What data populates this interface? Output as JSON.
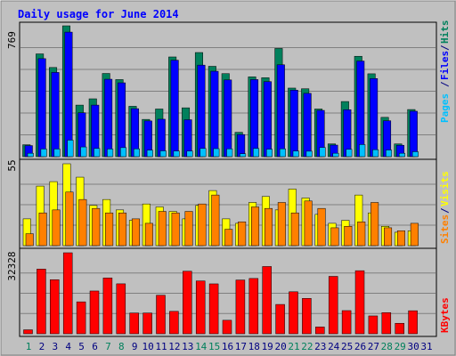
{
  "title": "Daily usage for June 2014",
  "colors": {
    "background": "#c0c0c0",
    "title": "#0000ff",
    "hits": "#00805c",
    "files": "#0000ff",
    "pages": "#00c0ff",
    "visits": "#ffff00",
    "sites": "#ff8000",
    "kbytes": "#ff0000",
    "weekend_day": "#00805c",
    "weekday": "#000080",
    "grid": "#808080"
  },
  "chart_data": [
    {
      "type": "bar",
      "name": "hits-files-pages",
      "ymax_label": "769",
      "ylim": [
        0,
        769
      ],
      "legend": [
        "Pages",
        "Files",
        "Hits"
      ],
      "series": [
        {
          "name": "Hits",
          "values": [
            70,
            604,
            524,
            769,
            303,
            340,
            489,
            453,
            296,
            219,
            280,
            586,
            287,
            612,
            531,
            488,
            143,
            469,
            464,
            636,
            403,
            399,
            280,
            75,
            324,
            590,
            487,
            231,
            75,
            277
          ]
        },
        {
          "name": "Files",
          "values": [
            65,
            576,
            495,
            732,
            258,
            303,
            455,
            434,
            282,
            210,
            220,
            567,
            217,
            538,
            502,
            451,
            130,
            453,
            441,
            540,
            391,
            372,
            272,
            68,
            276,
            562,
            459,
            211,
            67,
            267
          ]
        },
        {
          "name": "Pages",
          "values": [
            20,
            45,
            45,
            97,
            57,
            48,
            45,
            53,
            46,
            38,
            34,
            33,
            33,
            48,
            47,
            46,
            17,
            48,
            44,
            46,
            33,
            32,
            54,
            20,
            43,
            71,
            41,
            39,
            20,
            29
          ]
        }
      ]
    },
    {
      "type": "bar",
      "name": "visits-sites",
      "ymax_label": "55",
      "ylim": [
        0,
        55
      ],
      "legend": [
        "Sites",
        "Visits"
      ],
      "series": [
        {
          "name": "Visits",
          "values": [
            18,
            40,
            43,
            55,
            46,
            27,
            31,
            24,
            17,
            28,
            26,
            23,
            18,
            27,
            37,
            18,
            15,
            29,
            33,
            24,
            38,
            32,
            21,
            15,
            17,
            34,
            22,
            13,
            9,
            10
          ]
        },
        {
          "name": "Sites",
          "values": [
            8,
            22,
            24,
            36,
            31,
            25,
            22,
            22,
            18,
            15,
            23,
            22,
            23,
            28,
            34,
            11,
            16,
            26,
            25,
            29,
            22,
            30,
            25,
            12,
            13,
            16,
            29,
            12,
            10,
            15
          ]
        }
      ]
    },
    {
      "type": "bar",
      "name": "kbytes",
      "ymax_label": "32328",
      "ylim": [
        0,
        32328
      ],
      "legend": [
        "KBytes"
      ],
      "series": [
        {
          "name": "KBytes",
          "values": [
            1580,
            25800,
            21580,
            32328,
            12740,
            17070,
            22270,
            19930,
            8290,
            8290,
            15380,
            8940,
            24960,
            21090,
            19910,
            5380,
            21460,
            22070,
            26840,
            11700,
            16760,
            14120,
            2700,
            22910,
            9240,
            25170,
            7120,
            8440,
            4180,
            9190
          ]
        }
      ]
    }
  ],
  "x_axis": {
    "days": [
      "1",
      "2",
      "3",
      "4",
      "5",
      "6",
      "7",
      "8",
      "9",
      "10",
      "11",
      "12",
      "13",
      "14",
      "15",
      "16",
      "17",
      "18",
      "19",
      "20",
      "21",
      "22",
      "23",
      "24",
      "25",
      "26",
      "27",
      "28",
      "29",
      "30",
      "31"
    ],
    "weekend_days": [
      "1",
      "7",
      "8",
      "14",
      "15",
      "21",
      "22",
      "28",
      "29"
    ]
  }
}
